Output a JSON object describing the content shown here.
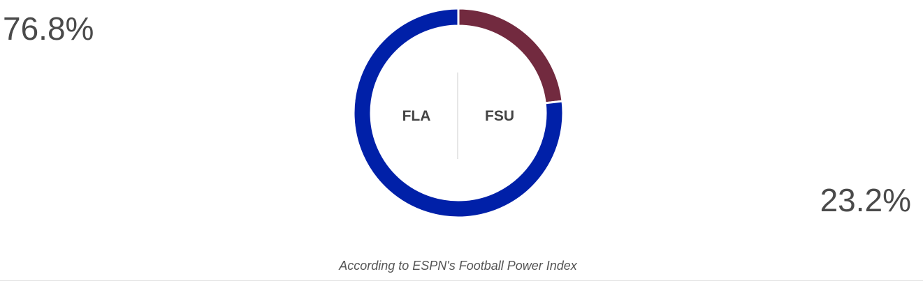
{
  "chart_data": {
    "type": "pie",
    "style": "donut",
    "slices": [
      {
        "team": "FLA",
        "value": 76.8,
        "label": "76.8%",
        "color": "#0020a8"
      },
      {
        "team": "FSU",
        "value": 23.2,
        "label": "23.2%",
        "color": "#722a3f"
      }
    ],
    "caption": "According to ESPN's Football Power Index"
  }
}
